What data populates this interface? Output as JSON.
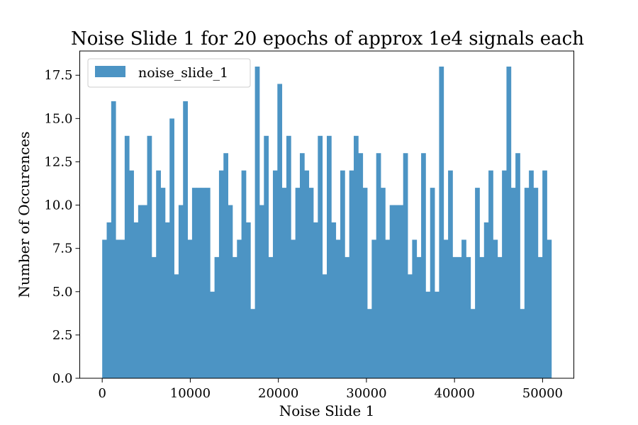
{
  "chart_data": {
    "type": "bar",
    "title": "Noise Slide 1 for 20 epochs of approx 1e4 signals each",
    "xlabel": "Noise Slide 1",
    "ylabel": "Number of Occurences",
    "xlim": [
      -2550,
      53550
    ],
    "ylim": [
      0,
      18.9
    ],
    "xticks": [
      0,
      10000,
      20000,
      30000,
      40000,
      50000
    ],
    "xtick_labels": [
      "0",
      "10000",
      "20000",
      "30000",
      "40000",
      "50000"
    ],
    "yticks": [
      0,
      2.5,
      5,
      7.5,
      10,
      12.5,
      15,
      17.5
    ],
    "ytick_labels": [
      "0.0",
      "2.5",
      "5.0",
      "7.5",
      "10.0",
      "12.5",
      "15.0",
      "17.5"
    ],
    "bin_start": 0,
    "bin_end": 51000,
    "series": [
      {
        "name": "noise_slide_1",
        "color": "#4c94c4",
        "values": [
          8,
          9,
          16,
          8,
          8,
          14,
          12,
          9,
          10,
          10,
          14,
          7,
          12,
          11,
          9,
          15,
          6,
          10,
          16,
          8,
          11,
          11,
          11,
          11,
          5,
          7,
          12,
          13,
          10,
          7,
          8,
          12,
          9,
          4,
          18,
          10,
          14,
          7,
          12,
          17,
          11,
          14,
          8,
          11,
          13,
          12,
          11,
          9,
          14,
          6,
          14,
          9,
          8,
          12,
          7,
          12,
          14,
          13,
          11,
          4,
          8,
          13,
          11,
          8,
          10,
          10,
          10,
          13,
          6,
          8,
          7,
          13,
          5,
          11,
          5,
          18,
          8,
          12,
          7,
          7,
          8,
          7,
          4,
          11,
          7,
          9,
          12,
          8,
          7,
          12,
          18,
          11,
          13,
          4,
          11,
          12,
          11,
          7,
          12,
          8
        ]
      }
    ],
    "legend": {
      "placement": "upper-left",
      "entries": [
        "noise_slide_1"
      ]
    },
    "grid": false
  }
}
